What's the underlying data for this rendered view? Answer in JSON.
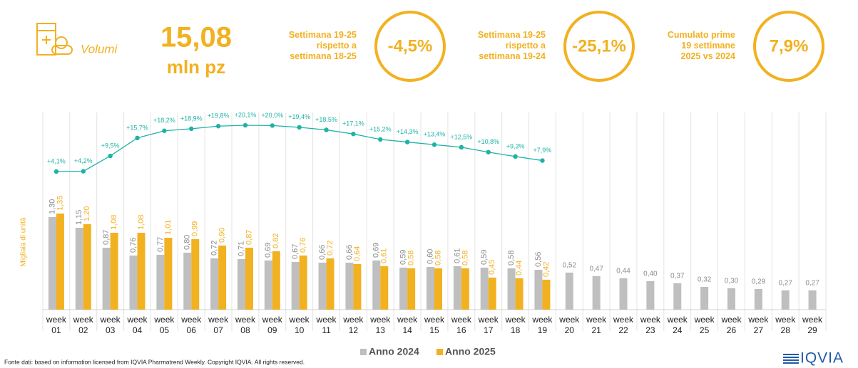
{
  "header": {
    "label": "Volumi",
    "value": "15,08",
    "unit": "mln pz"
  },
  "kpis": [
    {
      "lines": [
        "Settimana 19-25",
        "rispetto a",
        "settimana 18-25"
      ],
      "value": "-4,5%"
    },
    {
      "lines": [
        "Settimana 19-25",
        "rispetto a",
        "settimana 19-24"
      ],
      "value": "-25,1%"
    },
    {
      "lines": [
        "Cumulato prime",
        "19 settimane",
        "2025 vs 2024"
      ],
      "value": "7,9%"
    }
  ],
  "chart_data": {
    "type": "bar",
    "y_label": "Migliaia di unità",
    "categories": [
      "week 01",
      "week 02",
      "week 03",
      "week 04",
      "week 05",
      "week 06",
      "week 07",
      "week 08",
      "week 09",
      "week 10",
      "week 11",
      "week 12",
      "week 13",
      "week 14",
      "week 15",
      "week 16",
      "week 17",
      "week 18",
      "week 19",
      "week 20",
      "week 21",
      "week 22",
      "week 23",
      "week 24",
      "week 25",
      "week 26",
      "week 27",
      "week 28",
      "week 29"
    ],
    "series": [
      {
        "name": "Anno 2024",
        "color": "#bfbfbf",
        "values": [
          1.3,
          1.15,
          0.87,
          0.76,
          0.77,
          0.8,
          0.72,
          0.71,
          0.69,
          0.67,
          0.66,
          0.66,
          0.69,
          0.59,
          0.6,
          0.61,
          0.59,
          0.58,
          0.56,
          0.52,
          0.47,
          0.44,
          0.4,
          0.37,
          0.32,
          0.3,
          0.29,
          0.27,
          0.27
        ],
        "value_labels": [
          "1,30",
          "1,15",
          "0,87",
          "0,76",
          "0,77",
          "0,80",
          "0,72",
          "0,71",
          "0,69",
          "0,67",
          "0,66",
          "0,66",
          "0,69",
          "0,59",
          "0,60",
          "0,61",
          "0,59",
          "0,58",
          "0,56",
          "0,52",
          "0,47",
          "0,44",
          "0,40",
          "0,37",
          "0,32",
          "0,30",
          "0,29",
          "0,27",
          "0,27"
        ]
      },
      {
        "name": "Anno 2025",
        "color": "#f2b120",
        "values": [
          1.35,
          1.2,
          1.08,
          1.08,
          1.01,
          0.99,
          0.9,
          0.87,
          0.82,
          0.76,
          0.72,
          0.64,
          0.61,
          0.58,
          0.58,
          0.58,
          0.45,
          0.44,
          0.42,
          null,
          null,
          null,
          null,
          null,
          null,
          null,
          null,
          null,
          null
        ],
        "value_labels": [
          "1,35",
          "1,20",
          "1,08",
          "1,08",
          "1,01",
          "0,99",
          "0,90",
          "0,87",
          "0,82",
          "0,76",
          "0,72",
          "0,64",
          "0,61",
          "0,58",
          "0,58",
          "0,58",
          "0,45",
          "0,44",
          "0,42",
          null,
          null,
          null,
          null,
          null,
          null,
          null,
          null,
          null,
          null
        ]
      }
    ],
    "line": {
      "type": "line",
      "color": "#1db3a5",
      "values": [
        4.1,
        4.2,
        9.5,
        15.7,
        18.2,
        18.9,
        19.8,
        20.1,
        20.0,
        19.4,
        18.5,
        17.1,
        15.2,
        14.3,
        13.4,
        12.5,
        10.8,
        9.3,
        7.9
      ],
      "value_labels": [
        "+4,1%",
        "+4,2%",
        "+9,5%",
        "+15,7%",
        "+18,2%",
        "+18,9%",
        "+19,8%",
        "+20,1%",
        "+20,0%",
        "+19,4%",
        "+18,5%",
        "+17,1%",
        "+15,2%",
        "+14,3%",
        "+13,4%",
        "+12,5%",
        "+10,8%",
        "+9,3%",
        "+7,9%"
      ]
    },
    "legend": "bottom"
  },
  "footer": {
    "source": "Fonte dati: based on information licensed from IQVIA Pharmatrend Weekly. Copyright IQVIA. All rights reserved.",
    "logo": "IQVIA"
  }
}
